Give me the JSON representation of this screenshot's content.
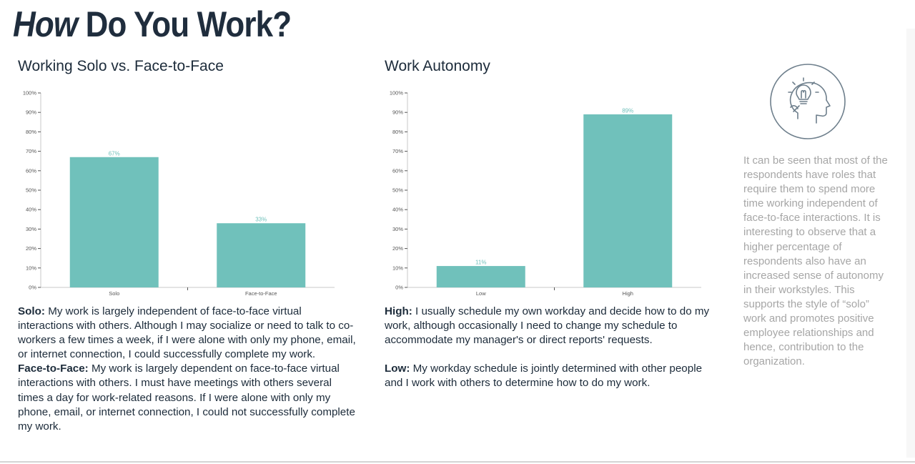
{
  "header": {
    "title_em": "How",
    "title_rest": "Do You Work?"
  },
  "chart_data": [
    {
      "type": "bar",
      "title": "Working Solo vs. Face-to-Face",
      "categories": [
        "Solo",
        "Face-to-Face"
      ],
      "values": [
        67,
        33
      ],
      "data_labels": [
        "67%",
        "33%"
      ],
      "ylim": [
        0,
        100
      ],
      "yticks": [
        "0%",
        "10%",
        "20%",
        "30%",
        "40%",
        "50%",
        "60%",
        "70%",
        "80%",
        "90%",
        "100%"
      ],
      "xlabel": "",
      "ylabel": "",
      "grid": false,
      "bar_color": "#70c1bb"
    },
    {
      "type": "bar",
      "title": "Work Autonomy",
      "categories": [
        "Low",
        "High"
      ],
      "values": [
        11,
        89
      ],
      "data_labels": [
        "11%",
        "89%"
      ],
      "ylim": [
        0,
        100
      ],
      "yticks": [
        "0%",
        "10%",
        "20%",
        "30%",
        "40%",
        "50%",
        "60%",
        "70%",
        "80%",
        "90%",
        "100%"
      ],
      "xlabel": "",
      "ylabel": "",
      "grid": false,
      "bar_color": "#70c1bb"
    }
  ],
  "descriptions": {
    "solo_term": "Solo:",
    "solo_text": " My work is largely independent of face-to-face virtual interactions with others. Although I may socialize or need to talk to co-workers a few times a week, if I were alone with only my phone, email, or internet connection, I could successfully complete my work.",
    "f2f_term": "Face-to-Face:",
    "f2f_text": " My work is largely dependent on face-to-face virtual interactions with others. I must have meetings with others several times a day for work-related reasons. If I were alone with only my phone, email, or internet connection, I could not successfully complete my work.",
    "high_term": "High:",
    "high_text": " I usually schedule my own workday and decide how to do my work, although occasionally I need to change my schedule to accommodate my manager's or direct reports' requests.",
    "low_term": "Low:",
    "low_text": " My workday schedule is jointly determined with other people and I work with others to determine how to do my work."
  },
  "sidebar": {
    "icon": "idea-head-icon",
    "text": "It can be seen that most of the respondents have roles that require them to spend more time working independent of face-to-face interactions. It is interesting to observe that a higher percentage of respondents also have an increased sense of autonomy in their workstyles. This supports the style of “solo” work and promotes positive employee relationships and hence, contribution to the organization."
  },
  "colors": {
    "bar": "#70c1bb",
    "label": "#70c1bb",
    "text": "#1c2b3a",
    "muted": "#a6a6a6",
    "axis": "#c8c8c8"
  }
}
